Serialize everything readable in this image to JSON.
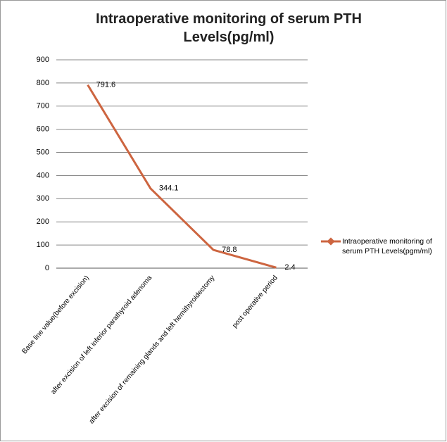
{
  "chart_data": {
    "type": "line",
    "title": "Intraoperative monitoring of serum PTH Levels(pg/ml)",
    "categories": [
      "Base line value(before excision)",
      "after excision of left inferior parathyroid adenoma",
      "after excision of remaining glands and left hemithyroidectomy",
      "post operative period"
    ],
    "series": [
      {
        "name": "Intraoperative monitoring of serum PTH Levels(pgm/ml)",
        "color": "#cd6540",
        "values": [
          791.6,
          344.1,
          78.8,
          2.4
        ]
      }
    ],
    "ylim": [
      0,
      900
    ],
    "yticks": [
      0,
      100,
      200,
      300,
      400,
      500,
      600,
      700,
      800,
      900
    ],
    "grid": true,
    "legend": "right"
  }
}
